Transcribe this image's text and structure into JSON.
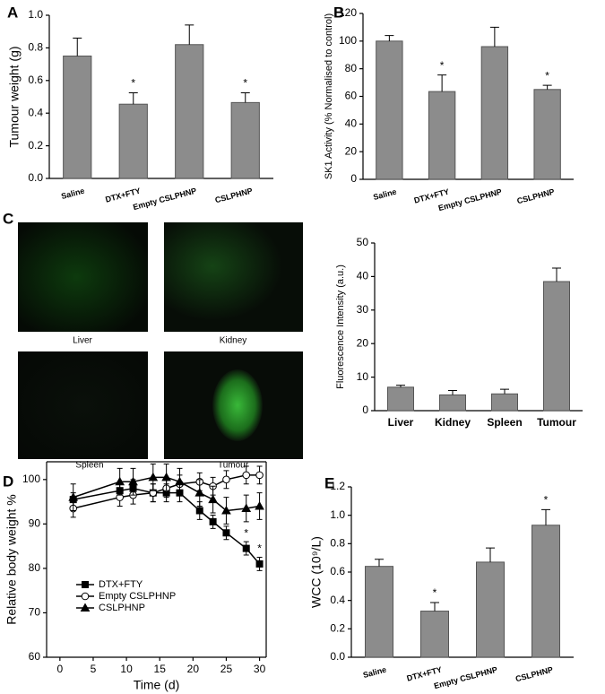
{
  "chart_data": [
    {
      "type": "bar",
      "panel": "A",
      "ylabel": "Tumour weight (g)",
      "categories": [
        "Saline",
        "DTX+FTY",
        "Empty CSLPHNP",
        "CSLPHNP"
      ],
      "values": [
        0.75,
        0.455,
        0.82,
        0.465
      ],
      "errors": [
        0.11,
        0.07,
        0.12,
        0.06
      ],
      "color": "#8c8c8c",
      "ylim": [
        0,
        1.0
      ],
      "yticks": [
        {
          "value": 0,
          "label": "0.0"
        },
        0.2,
        0.4,
        0.6,
        0.8,
        {
          "value": 1,
          "label": "1.0"
        }
      ],
      "annotations": [
        {
          "category": "DTX+FTY",
          "text": "*"
        },
        {
          "category": "CSLPHNP",
          "text": "*"
        }
      ]
    },
    {
      "type": "bar",
      "panel": "B",
      "ylabel": "SK1 Activity (% Normalised to control)",
      "categories": [
        "Saline",
        "DTX+FTY",
        "Empty CSLPHNP",
        "CSLPHNP"
      ],
      "values": [
        100,
        63.5,
        96,
        65
      ],
      "errors": [
        4,
        12,
        14,
        3
      ],
      "color": "#8c8c8c",
      "ylim": [
        0,
        120
      ],
      "yticks": [
        0,
        20,
        40,
        60,
        80,
        100,
        120
      ],
      "annotations": [
        {
          "category": "DTX+FTY",
          "text": "*"
        },
        {
          "category": "CSLPHNP",
          "text": "*"
        }
      ]
    },
    {
      "type": "bar",
      "ylabel": "Fluorescence  Intensity (a.u.)",
      "categories": [
        "Liver",
        "Kidney",
        "Spleen",
        "Tumour"
      ],
      "values": [
        7,
        4.7,
        5,
        38.5
      ],
      "errors": [
        0.6,
        1.3,
        1.4,
        4
      ],
      "color": "#8c8c8c",
      "ylim": [
        0,
        50
      ],
      "yticks": [
        0,
        10,
        20,
        30,
        40,
        50
      ]
    },
    {
      "type": "line",
      "panel": "D",
      "xlabel": "Time (d)",
      "ylabel": "Relative body weight %",
      "x": [
        2,
        9,
        11,
        14,
        16,
        18,
        21,
        23,
        25,
        28,
        30
      ],
      "series": [
        {
          "name": "DTX+FTY",
          "color": "#000000",
          "marker": "square",
          "values": [
            95.5,
            97.5,
            98,
            97,
            97,
            97,
            93,
            90.5,
            88,
            84.5,
            81
          ],
          "errors": [
            1.5,
            2,
            2,
            2,
            2,
            2,
            2,
            1.5,
            1.5,
            1.5,
            1.5
          ]
        },
        {
          "name": "Empty CSLPHNP",
          "color": "#000000",
          "marker": "circle-open",
          "values": [
            93.5,
            96,
            96.5,
            97,
            98,
            99,
            99.5,
            98.5,
            100,
            101,
            101
          ],
          "errors": [
            2,
            2,
            2,
            2,
            2,
            2,
            2,
            2,
            2,
            2,
            2
          ]
        },
        {
          "name": "CSLPHNP",
          "color": "#000000",
          "marker": "triangle",
          "values": [
            96,
            99.5,
            99.5,
            100.5,
            100.5,
            99.5,
            97,
            95.5,
            93,
            93.5,
            94
          ],
          "errors": [
            3,
            3,
            3,
            3,
            3,
            3,
            3,
            3,
            3,
            3,
            3
          ]
        }
      ],
      "xlim": [
        -2,
        31
      ],
      "xticks": [
        0,
        5,
        10,
        15,
        20,
        25,
        30
      ],
      "ylim": [
        60,
        104
      ],
      "yticks": [
        60,
        70,
        80,
        90,
        100
      ],
      "annotations": [
        {
          "series": "DTX+FTY",
          "x": 28,
          "text": "*"
        },
        {
          "series": "DTX+FTY",
          "x": 30,
          "text": "*"
        }
      ]
    },
    {
      "type": "bar",
      "panel": "E",
      "ylabel": "WCC (10⁹/L)",
      "categories": [
        "Saline",
        "DTX+FTY",
        "Empty CSLPHNP",
        "CSLPHNP"
      ],
      "values": [
        0.64,
        0.325,
        0.67,
        0.93
      ],
      "errors": [
        0.05,
        0.06,
        0.1,
        0.11
      ],
      "color": "#8c8c8c",
      "ylim": [
        0,
        1.2
      ],
      "yticks": [
        {
          "value": 0,
          "label": "0.0"
        },
        0.2,
        0.4,
        0.6,
        0.8,
        {
          "value": 1,
          "label": "1.0"
        },
        1.2
      ],
      "annotations": [
        {
          "category": "DTX+FTY",
          "text": "*"
        },
        {
          "category": "CSLPHNP",
          "text": "*"
        }
      ]
    }
  ],
  "images": {
    "panel": "C",
    "labels": [
      "Liver",
      "Kidney",
      "Spleen",
      "Tumour"
    ]
  }
}
